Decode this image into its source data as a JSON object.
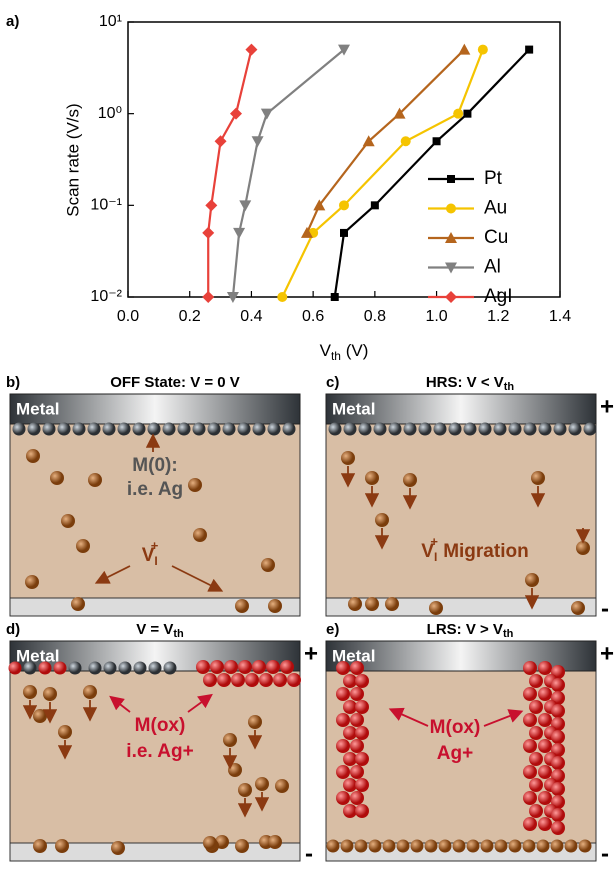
{
  "chart_data": {
    "type": "line",
    "label": "a)",
    "ylabel": "Scan rate (V/s)",
    "xlabel": [
      "V",
      "th",
      " (V)"
    ],
    "xlim": [
      0,
      1.4
    ],
    "xticks": [
      {
        "value": 0,
        "label": "0.0"
      },
      0.2,
      0.4,
      0.6,
      0.8,
      {
        "value": 1,
        "label": "1.0"
      },
      1.2,
      1.4
    ],
    "ylim": [
      0.01,
      10
    ],
    "yscale": "log",
    "yticks": [
      {
        "value": 0.01,
        "label": "10⁻²"
      },
      {
        "value": 0.1,
        "label": "10⁻¹"
      },
      {
        "value": 1,
        "label": "10⁰"
      },
      {
        "value": 10,
        "label": "10¹"
      }
    ],
    "legend": "lower right",
    "series": [
      {
        "name": "Pt",
        "color": "#000000",
        "marker": "square",
        "x": [
          1.3,
          1.1,
          1.0,
          0.8,
          0.7,
          0.67
        ],
        "y": [
          5,
          1,
          0.5,
          0.1,
          0.05,
          0.01
        ]
      },
      {
        "name": "Au",
        "color": "#f5c400",
        "marker": "circle",
        "x": [
          1.15,
          1.07,
          0.9,
          0.7,
          0.6,
          0.5
        ],
        "y": [
          5,
          1,
          0.5,
          0.1,
          0.05,
          0.01
        ]
      },
      {
        "name": "Cu",
        "color": "#b5651d",
        "marker": "triangle-up",
        "x": [
          1.09,
          0.88,
          0.78,
          0.62,
          0.58
        ],
        "y": [
          5,
          1,
          0.5,
          0.1,
          0.05
        ]
      },
      {
        "name": "Al",
        "color": "#808080",
        "marker": "triangle-down",
        "x": [
          0.7,
          0.45,
          0.42,
          0.38,
          0.36,
          0.34
        ],
        "y": [
          5,
          1,
          0.5,
          0.1,
          0.05,
          0.01
        ]
      },
      {
        "name": "AgI",
        "color": "#e8413a",
        "marker": "diamond",
        "x": [
          0.4,
          0.35,
          0.3,
          0.27,
          0.26,
          0.26
        ],
        "y": [
          5,
          1,
          0.5,
          0.1,
          0.05,
          0.01
        ]
      }
    ]
  },
  "panels": [
    {
      "label": "b)",
      "title": [
        "OFF State: V = 0 V"
      ],
      "electrode": "Metal",
      "annotations": [
        [
          "M(0):"
        ],
        [
          "i.e. Ag"
        ],
        [
          "V",
          "I",
          "+"
        ]
      ]
    },
    {
      "label": "c)",
      "title": [
        "HRS: V < V",
        "th"
      ],
      "electrode": "Metal",
      "top_polarity": "+",
      "bottom_polarity": "-",
      "annotations": [
        [
          "V",
          "I",
          "+",
          " Migration"
        ]
      ]
    },
    {
      "label": "d)",
      "title": [
        "V = V",
        "th"
      ],
      "electrode": "Metal",
      "top_polarity": "+",
      "bottom_polarity": "-",
      "annotations": [
        [
          "M(ox)"
        ],
        [
          "i.e. Ag+"
        ]
      ]
    },
    {
      "label": "e)",
      "title": [
        "LRS: V > V",
        "th"
      ],
      "electrode": "Metal",
      "top_polarity": "+",
      "bottom_polarity": "-",
      "annotations": [
        [
          "M(ox)"
        ],
        [
          "Ag+"
        ]
      ]
    }
  ]
}
